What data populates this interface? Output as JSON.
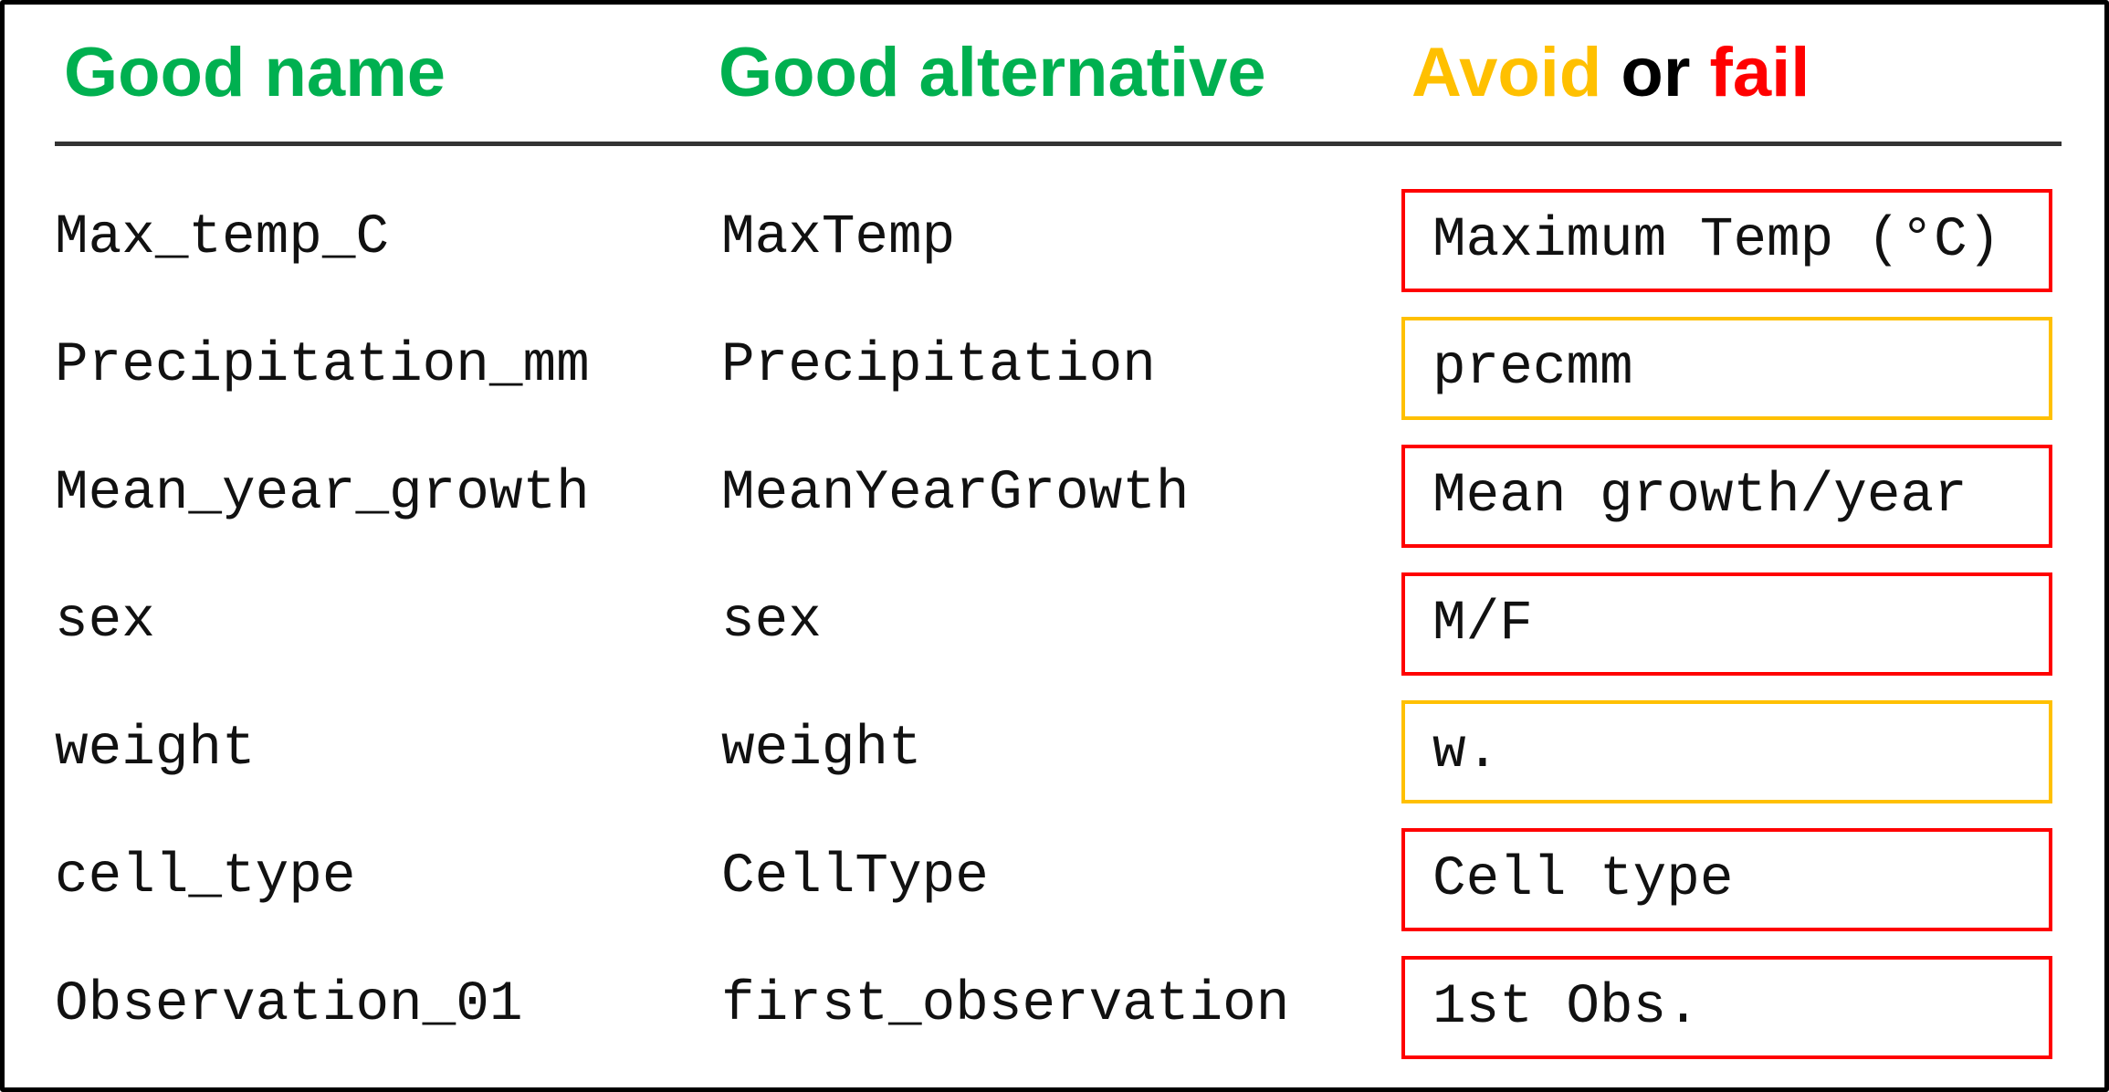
{
  "headers": {
    "good_name": "Good name",
    "good_alternative": "Good alternative",
    "avoid_word": "Avoid",
    "or_word": "or",
    "fail_word": "fail"
  },
  "colors": {
    "good": "#00b050",
    "avoid": "#ffc000",
    "fail": "#ff0000",
    "rule": "#333333",
    "frame": "#000000"
  },
  "rows": [
    {
      "good": "Max_temp_C",
      "alternative": "MaxTemp",
      "bad": "Maximum Temp (°C)",
      "status": "fail"
    },
    {
      "good": "Precipitation_mm",
      "alternative": "Precipitation",
      "bad": "precmm",
      "status": "avoid"
    },
    {
      "good": "Mean_year_growth",
      "alternative": "MeanYearGrowth",
      "bad": "Mean growth/year",
      "status": "fail"
    },
    {
      "good": "sex",
      "alternative": "sex",
      "bad": "M/F",
      "status": "fail"
    },
    {
      "good": "weight",
      "alternative": "weight",
      "bad": "w.",
      "status": "avoid"
    },
    {
      "good": "cell_type",
      "alternative": "CellType",
      "bad": "Cell type",
      "status": "fail"
    },
    {
      "good": "Observation_01",
      "alternative": "first_observation",
      "bad": "1st Obs.",
      "status": "fail"
    }
  ]
}
